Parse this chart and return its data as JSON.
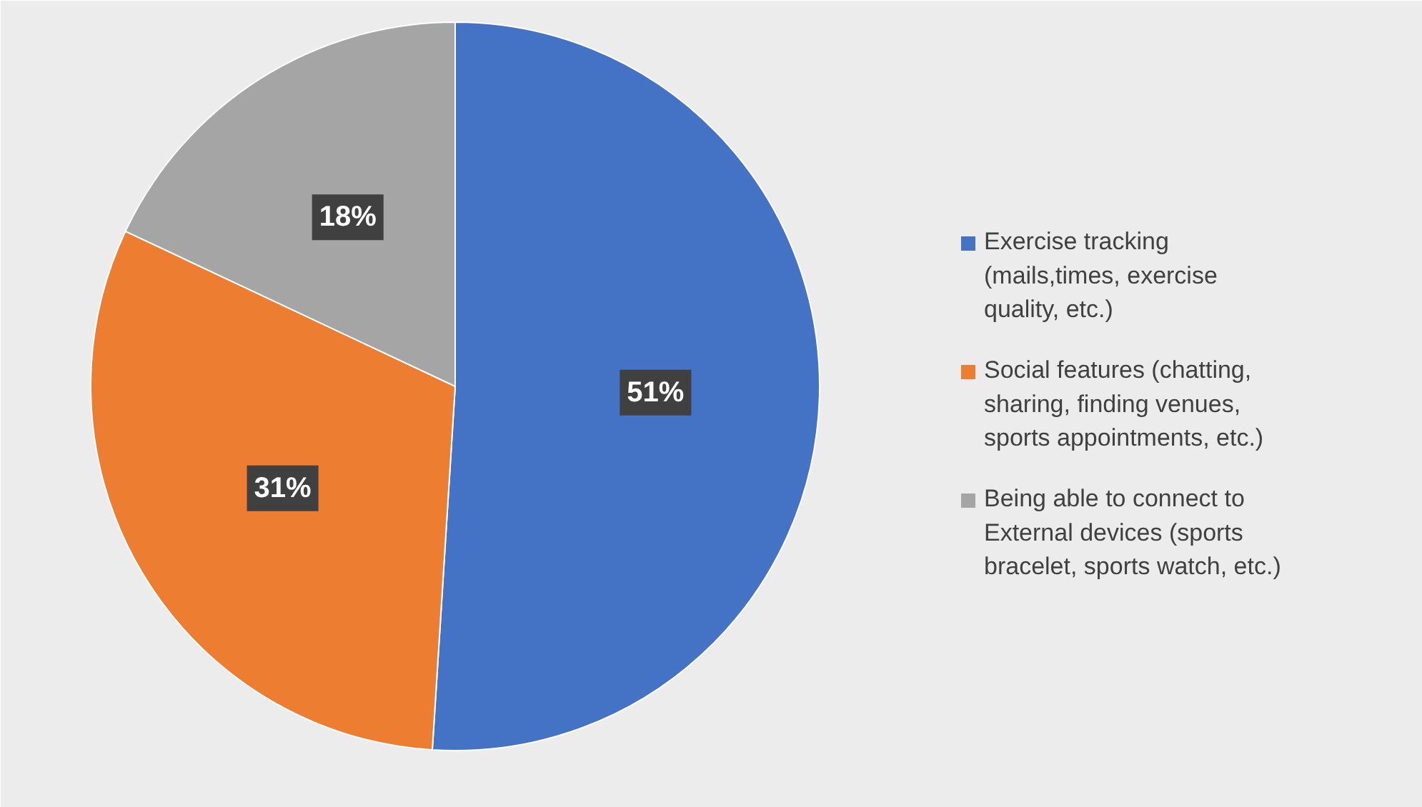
{
  "chart_data": {
    "type": "pie",
    "categories": [
      "Exercise tracking (mails,times, exercise quality, etc.)",
      "Social features (chatting, sharing, finding venues, sports appointments, etc.)",
      "Being able to connect to External devices (sports bracelet, sports watch, etc.)"
    ],
    "values": [
      51,
      31,
      18
    ],
    "colors": [
      "#4472c4",
      "#ed7d31",
      "#a5a5a5"
    ],
    "value_labels": [
      "51%",
      "31%",
      "18%"
    ],
    "legend": "right"
  }
}
